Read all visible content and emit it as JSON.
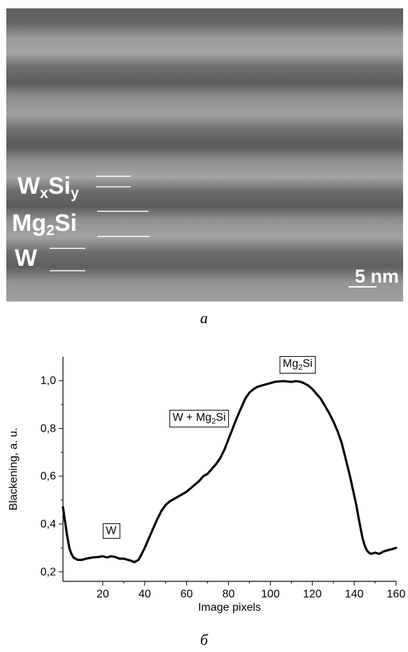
{
  "panel_a": {
    "caption": "a",
    "labels": {
      "wxsiy": {
        "main": "W",
        "sub1": "x",
        "mid": "Si",
        "sub2": "y"
      },
      "mg2si": {
        "main": "Mg",
        "sub1": "2",
        "mid": "Si"
      },
      "w": "W"
    },
    "scale_bar": "5 nm"
  },
  "panel_b": {
    "caption": "б"
  },
  "chart_data": {
    "type": "line",
    "xlabel": "Image pixels",
    "ylabel": "Blackening, a. u.",
    "xlim": [
      1,
      160
    ],
    "ylim": [
      0.16,
      1.1
    ],
    "xticks": [
      20,
      40,
      60,
      80,
      100,
      120,
      140,
      160
    ],
    "yticks": [
      0.2,
      0.4,
      0.6,
      0.8,
      1.0
    ],
    "ytick_labels": [
      "0,2",
      "0,4",
      "0,6",
      "0,8",
      "1,0"
    ],
    "grid": false,
    "annotations": [
      {
        "text": "W",
        "x": 24,
        "y": 0.375
      },
      {
        "text_parts": [
          "W + Mg",
          "2",
          "Si"
        ],
        "x": 66,
        "y": 0.85
      },
      {
        "text_parts": [
          "Mg",
          "2",
          "Si"
        ],
        "x": 113,
        "y": 1.075
      }
    ],
    "series": [
      {
        "color": "#000000",
        "x": [
          1,
          2,
          3,
          4,
          5,
          6,
          7,
          8,
          10,
          12,
          15,
          18,
          20,
          22,
          24,
          26,
          28,
          30,
          32,
          34,
          35,
          36,
          37,
          38,
          40,
          42,
          44,
          46,
          48,
          50,
          52,
          55,
          58,
          60,
          62,
          64,
          66,
          68,
          70,
          72,
          74,
          76,
          78,
          80,
          82,
          84,
          86,
          88,
          90,
          92,
          94,
          96,
          98,
          100,
          102,
          104,
          106,
          108,
          110,
          112,
          114,
          116,
          118,
          120,
          122,
          124,
          126,
          128,
          130,
          132,
          134,
          136,
          138,
          140,
          141,
          142,
          143,
          144,
          145,
          146,
          147,
          148,
          150,
          152,
          154,
          156,
          158,
          160
        ],
        "y": [
          0.47,
          0.41,
          0.35,
          0.3,
          0.275,
          0.26,
          0.255,
          0.25,
          0.25,
          0.255,
          0.26,
          0.262,
          0.265,
          0.26,
          0.265,
          0.262,
          0.255,
          0.255,
          0.25,
          0.245,
          0.24,
          0.245,
          0.25,
          0.265,
          0.3,
          0.34,
          0.38,
          0.42,
          0.455,
          0.48,
          0.495,
          0.51,
          0.525,
          0.535,
          0.55,
          0.565,
          0.58,
          0.6,
          0.61,
          0.63,
          0.65,
          0.675,
          0.71,
          0.755,
          0.8,
          0.845,
          0.885,
          0.925,
          0.95,
          0.965,
          0.975,
          0.98,
          0.985,
          0.99,
          0.995,
          0.997,
          0.998,
          0.997,
          0.995,
          0.998,
          0.996,
          0.99,
          0.98,
          0.965,
          0.945,
          0.925,
          0.895,
          0.865,
          0.83,
          0.79,
          0.74,
          0.67,
          0.6,
          0.52,
          0.48,
          0.43,
          0.385,
          0.34,
          0.31,
          0.29,
          0.28,
          0.275,
          0.28,
          0.275,
          0.285,
          0.29,
          0.295,
          0.3
        ]
      }
    ]
  }
}
